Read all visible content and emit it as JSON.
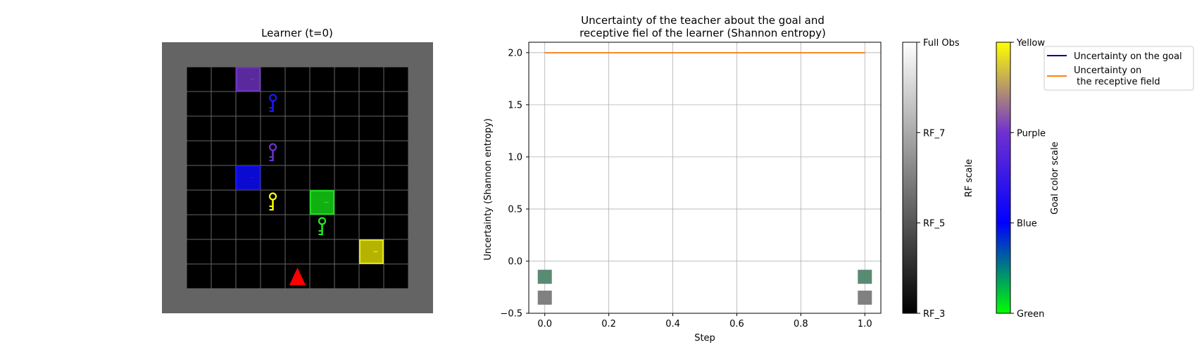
{
  "grid_panel": {
    "title": "Learner (t=0)",
    "wall_color": "#646464",
    "floor_color": "#000000",
    "gridline_color": "#666666",
    "rows": 9,
    "cols": 9,
    "doors": [
      {
        "name": "purple-door",
        "row": 0,
        "col": 2,
        "fill": "#5a2a9c",
        "stroke": "#6e33c4"
      },
      {
        "name": "blue-door",
        "row": 4,
        "col": 2,
        "fill": "#0a0ad0",
        "stroke": "#1414ee"
      },
      {
        "name": "green-door",
        "row": 5,
        "col": 5,
        "fill": "#10b010",
        "stroke": "#22dd22"
      },
      {
        "name": "yellow-door",
        "row": 7,
        "col": 7,
        "fill": "#b4b400",
        "stroke": "#e6e61a"
      }
    ],
    "keys": [
      {
        "name": "blue-key",
        "row": 1,
        "col": 3,
        "color": "#1a1aff"
      },
      {
        "name": "purple-key",
        "row": 3,
        "col": 3,
        "color": "#7030d0"
      },
      {
        "name": "yellow-key",
        "row": 5,
        "col": 3,
        "color": "#ffff00"
      },
      {
        "name": "green-key",
        "row": 6,
        "col": 5,
        "color": "#22ee22"
      }
    ],
    "agent": {
      "row": 8,
      "col": 4,
      "color": "#ff0000",
      "direction": "up"
    }
  },
  "chart_data": {
    "type": "line",
    "title": "Uncertainty of the teacher about the goal and\n receptive fiel of the learner (Shannon entropy)",
    "xlabel": "Step",
    "ylabel": "Uncertainty (Shannon entropy)",
    "xlim": [
      -0.05,
      1.05
    ],
    "ylim": [
      -0.5,
      2.1
    ],
    "xticks": [
      0.0,
      0.2,
      0.4,
      0.6,
      0.8,
      1.0
    ],
    "xtick_labels": [
      "0.0",
      "0.2",
      "0.4",
      "0.6",
      "0.8",
      "1.0"
    ],
    "yticks": [
      -0.5,
      0.0,
      0.5,
      1.0,
      1.5,
      2.0
    ],
    "ytick_labels": [
      "−0.5",
      "0.0",
      "0.5",
      "1.0",
      "1.5",
      "2.0"
    ],
    "grid": true,
    "series": [
      {
        "name": "Uncertainty on the goal",
        "color": "#00008b",
        "x": [
          0,
          1
        ],
        "y": [
          2.0,
          2.0
        ]
      },
      {
        "name": "Uncertainty on\n the receptive field",
        "color": "#ff7f0e",
        "x": [
          0,
          1
        ],
        "y": [
          2.0,
          2.0
        ]
      }
    ],
    "markers": [
      {
        "x": 0,
        "y": -0.15,
        "color": "#5a8a72"
      },
      {
        "x": 1,
        "y": -0.15,
        "color": "#5a8a72"
      },
      {
        "x": 0,
        "y": -0.35,
        "color": "#808080"
      },
      {
        "x": 1,
        "y": -0.35,
        "color": "#808080"
      }
    ],
    "legend_position": "outside upper-right"
  },
  "rf_colorbar": {
    "label": "RF scale",
    "ticks": [
      "RF_3",
      "RF_5",
      "RF_7",
      "Full Obs"
    ],
    "colors": [
      "#000000",
      "#ffffff"
    ]
  },
  "goal_colorbar": {
    "label": "Goal color scale",
    "ticks": [
      "Green",
      "Blue",
      "Purple",
      "Yellow"
    ],
    "colors": [
      "#00ff00",
      "#0000ff",
      "#7030d0",
      "#ffff00"
    ]
  }
}
